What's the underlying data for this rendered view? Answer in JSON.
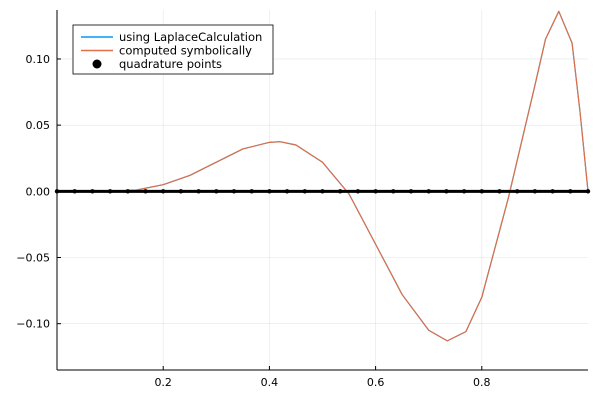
{
  "chart_data": {
    "type": "line",
    "title": "",
    "xlabel": "",
    "ylabel": "",
    "xlim": [
      0.0,
      1.0
    ],
    "ylim": [
      -0.135,
      0.137
    ],
    "grid": true,
    "legend_position": "top-left",
    "x_ticks": [
      {
        "value": 0.2,
        "label": "0.2"
      },
      {
        "value": 0.4,
        "label": "0.4"
      },
      {
        "value": 0.6,
        "label": "0.6"
      },
      {
        "value": 0.8,
        "label": "0.8"
      }
    ],
    "y_ticks": [
      {
        "value": 0.1,
        "label": "0.10"
      },
      {
        "value": 0.05,
        "label": "0.05"
      },
      {
        "value": 0.0,
        "label": "0.00"
      },
      {
        "value": -0.05,
        "label": "−0.05"
      },
      {
        "value": -0.1,
        "label": "−0.10"
      }
    ],
    "series": [
      {
        "name": "using LaplaceCalculation",
        "kind": "line",
        "color": "#009af9",
        "x": [
          0.0,
          0.05,
          0.1,
          0.15,
          0.2,
          0.25,
          0.3,
          0.35,
          0.4,
          0.42,
          0.45,
          0.5,
          0.55,
          0.6,
          0.65,
          0.7,
          0.735,
          0.77,
          0.8,
          0.85,
          0.9,
          0.92,
          0.945,
          0.97,
          0.985,
          1.0
        ],
        "y": [
          0.0,
          0.0,
          0.0,
          0.001,
          0.005,
          0.012,
          0.022,
          0.032,
          0.037,
          0.0375,
          0.035,
          0.022,
          -0.002,
          -0.04,
          -0.078,
          -0.105,
          -0.113,
          -0.106,
          -0.08,
          -0.005,
          0.08,
          0.115,
          0.136,
          0.112,
          0.06,
          0.0
        ]
      },
      {
        "name": "computed symbolically",
        "kind": "line",
        "color": "#e26f46",
        "x": [
          0.0,
          0.05,
          0.1,
          0.15,
          0.2,
          0.25,
          0.3,
          0.35,
          0.4,
          0.42,
          0.45,
          0.5,
          0.55,
          0.6,
          0.65,
          0.7,
          0.735,
          0.77,
          0.8,
          0.85,
          0.9,
          0.92,
          0.945,
          0.97,
          0.985,
          1.0
        ],
        "y": [
          0.0,
          0.0,
          0.0,
          0.001,
          0.005,
          0.012,
          0.022,
          0.032,
          0.037,
          0.0375,
          0.035,
          0.022,
          -0.002,
          -0.04,
          -0.078,
          -0.105,
          -0.113,
          -0.106,
          -0.08,
          -0.005,
          0.08,
          0.115,
          0.136,
          0.112,
          0.06,
          0.0
        ]
      },
      {
        "name": "quadrature points",
        "kind": "scatter",
        "color": "#000000",
        "x": [
          0.0,
          0.0333,
          0.0667,
          0.1,
          0.1333,
          0.1667,
          0.2,
          0.2333,
          0.2667,
          0.3,
          0.3333,
          0.3667,
          0.4,
          0.4333,
          0.4667,
          0.5,
          0.5333,
          0.5667,
          0.6,
          0.6333,
          0.6667,
          0.7,
          0.7333,
          0.7667,
          0.8,
          0.8333,
          0.8667,
          0.9,
          0.9333,
          0.9667,
          1.0
        ],
        "y": [
          0.0,
          0.0,
          0.0,
          0.0,
          0.0,
          0.0,
          0.0,
          0.0,
          0.0,
          0.0,
          0.0,
          0.0,
          0.0,
          0.0,
          0.0,
          0.0,
          0.0,
          0.0,
          0.0,
          0.0,
          0.0,
          0.0,
          0.0,
          0.0,
          0.0,
          0.0,
          0.0,
          0.0,
          0.0,
          0.0,
          0.0
        ]
      }
    ]
  }
}
